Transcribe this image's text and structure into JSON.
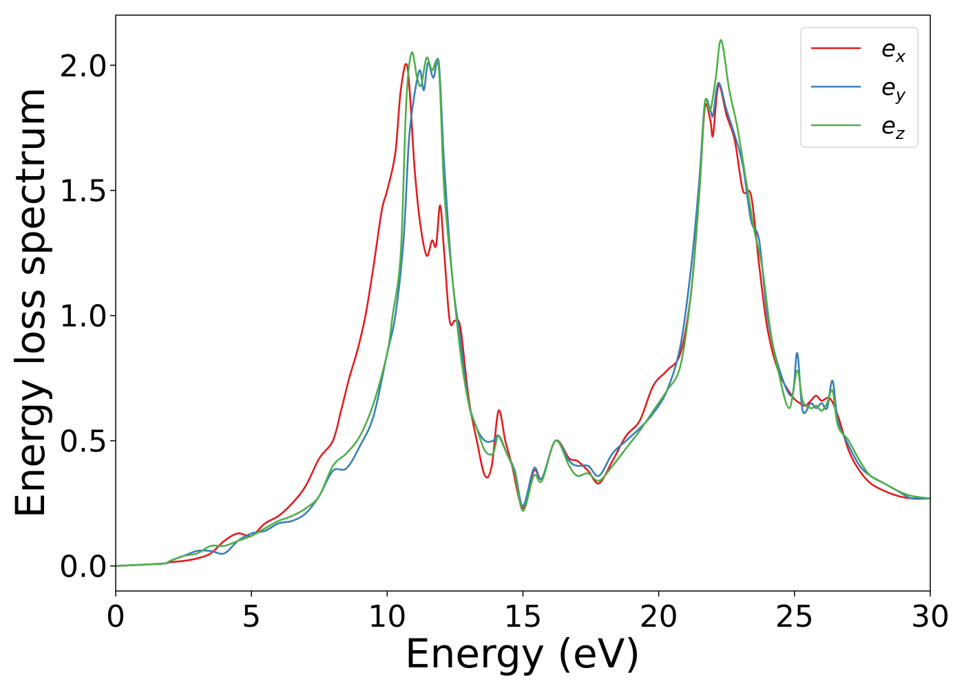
{
  "chart_data": {
    "type": "line",
    "title": "",
    "xlabel": "Energy (eV)",
    "ylabel": "Energy loss spectrum",
    "xlim": [
      0,
      30
    ],
    "ylim": [
      -0.1,
      2.2
    ],
    "xticks": [
      0,
      5,
      10,
      15,
      20,
      25,
      30
    ],
    "yticks": [
      0.0,
      0.5,
      1.0,
      1.5,
      2.0
    ],
    "xtick_labels": [
      "0",
      "5",
      "10",
      "15",
      "20",
      "25",
      "30"
    ],
    "ytick_labels": [
      "0.0",
      "0.5",
      "1.0",
      "1.5",
      "2.0"
    ],
    "grid": false,
    "legend_position": "top-right",
    "series": [
      {
        "name": "e_x",
        "label_base": "e",
        "label_sub": "x",
        "color": "#e41a1c",
        "x": [
          0,
          1,
          1.8,
          2,
          2.5,
          3,
          3.5,
          4,
          4.5,
          5,
          5.5,
          6,
          6.5,
          7,
          7.5,
          8,
          8.3,
          8.6,
          8.9,
          9.2,
          9.5,
          9.8,
          10.0,
          10.3,
          10.5,
          10.75,
          11.0,
          11.2,
          11.45,
          11.65,
          11.8,
          11.95,
          12.1,
          12.3,
          12.5,
          12.7,
          13.0,
          13.3,
          13.6,
          13.85,
          14.1,
          14.35,
          14.6,
          15.0,
          15.4,
          15.7,
          16.2,
          16.7,
          17.0,
          17.4,
          17.8,
          18.3,
          18.8,
          19.3,
          19.8,
          20.3,
          20.8,
          21.2,
          21.5,
          21.7,
          21.9,
          22.0,
          22.2,
          22.5,
          22.8,
          23.1,
          23.4,
          23.7,
          24.0,
          24.4,
          24.9,
          25.2,
          25.4,
          25.6,
          25.8,
          26.0,
          26.3,
          26.6,
          27.0,
          27.4,
          27.8,
          28.3,
          28.8,
          29.3,
          30
        ],
        "y": [
          0.0,
          0.005,
          0.01,
          0.015,
          0.02,
          0.03,
          0.05,
          0.1,
          0.13,
          0.12,
          0.17,
          0.2,
          0.25,
          0.32,
          0.43,
          0.5,
          0.62,
          0.75,
          0.86,
          1.0,
          1.2,
          1.42,
          1.5,
          1.65,
          1.9,
          1.99,
          1.6,
          1.38,
          1.24,
          1.3,
          1.28,
          1.44,
          1.25,
          0.98,
          0.98,
          0.95,
          0.67,
          0.5,
          0.36,
          0.4,
          0.62,
          0.5,
          0.4,
          0.23,
          0.38,
          0.35,
          0.5,
          0.43,
          0.42,
          0.38,
          0.33,
          0.42,
          0.52,
          0.58,
          0.72,
          0.78,
          0.85,
          1.1,
          1.5,
          1.83,
          1.78,
          1.72,
          1.92,
          1.8,
          1.7,
          1.5,
          1.48,
          1.2,
          0.95,
          0.78,
          0.68,
          0.65,
          0.64,
          0.66,
          0.68,
          0.66,
          0.67,
          0.6,
          0.46,
          0.38,
          0.33,
          0.3,
          0.28,
          0.27,
          0.27
        ]
      },
      {
        "name": "e_y",
        "label_base": "e",
        "label_sub": "y",
        "color": "#377eb8",
        "x": [
          0,
          1,
          1.8,
          2,
          2.5,
          3,
          3.5,
          4,
          4.5,
          5,
          5.5,
          6,
          6.5,
          7,
          7.5,
          8,
          8.5,
          9,
          9.5,
          10,
          10.3,
          10.6,
          10.8,
          11.0,
          11.2,
          11.35,
          11.5,
          11.7,
          11.9,
          12.1,
          12.4,
          12.7,
          13.0,
          13.3,
          13.6,
          13.9,
          14.1,
          14.4,
          14.7,
          15.0,
          15.4,
          15.7,
          16.2,
          16.7,
          17.0,
          17.4,
          17.8,
          18.3,
          18.8,
          19.3,
          19.8,
          20.3,
          20.8,
          21.2,
          21.5,
          21.7,
          21.9,
          22.0,
          22.2,
          22.5,
          22.8,
          23.1,
          23.4,
          23.7,
          24.0,
          24.4,
          24.9,
          25.1,
          25.3,
          25.6,
          25.8,
          26.0,
          26.2,
          26.4,
          26.6,
          27.0,
          27.4,
          27.8,
          28.3,
          28.8,
          29.3,
          30
        ],
        "y": [
          0.0,
          0.005,
          0.01,
          0.02,
          0.04,
          0.06,
          0.06,
          0.05,
          0.1,
          0.13,
          0.14,
          0.17,
          0.18,
          0.21,
          0.28,
          0.38,
          0.39,
          0.48,
          0.6,
          0.85,
          1.0,
          1.3,
          1.7,
          1.88,
          1.98,
          1.9,
          2.01,
          1.95,
          2.01,
          1.6,
          1.15,
          0.9,
          0.65,
          0.55,
          0.5,
          0.5,
          0.52,
          0.45,
          0.38,
          0.24,
          0.39,
          0.35,
          0.5,
          0.42,
          0.4,
          0.4,
          0.36,
          0.45,
          0.5,
          0.55,
          0.61,
          0.7,
          0.88,
          1.2,
          1.55,
          1.85,
          1.82,
          1.8,
          1.93,
          1.82,
          1.72,
          1.6,
          1.38,
          1.3,
          1.0,
          0.8,
          0.68,
          0.85,
          0.62,
          0.65,
          0.63,
          0.65,
          0.63,
          0.74,
          0.58,
          0.48,
          0.4,
          0.36,
          0.33,
          0.3,
          0.27,
          0.27
        ]
      },
      {
        "name": "e_z",
        "label_base": "e",
        "label_sub": "z",
        "color": "#4daf4a",
        "x": [
          0,
          1,
          1.8,
          2,
          2.5,
          3,
          3.5,
          4,
          4.5,
          5,
          5.5,
          6,
          6.5,
          7,
          7.5,
          8,
          8.5,
          9,
          9.5,
          10,
          10.2,
          10.5,
          10.7,
          10.9,
          11.1,
          11.25,
          11.45,
          11.65,
          11.9,
          12.1,
          12.4,
          12.7,
          13.0,
          13.3,
          13.6,
          13.9,
          14.1,
          14.4,
          14.7,
          15.0,
          15.4,
          15.7,
          16.2,
          16.7,
          17.0,
          17.4,
          17.8,
          18.3,
          18.8,
          19.3,
          19.8,
          20.3,
          20.8,
          21.2,
          21.5,
          21.7,
          21.9,
          22.1,
          22.3,
          22.6,
          22.9,
          23.2,
          23.5,
          23.8,
          24.1,
          24.4,
          24.8,
          25.1,
          25.3,
          25.6,
          25.8,
          26.0,
          26.2,
          26.4,
          26.6,
          27.0,
          27.4,
          27.8,
          28.3,
          28.8,
          29.3,
          30
        ],
        "y": [
          0.0,
          0.005,
          0.01,
          0.02,
          0.04,
          0.05,
          0.08,
          0.08,
          0.1,
          0.12,
          0.15,
          0.18,
          0.2,
          0.23,
          0.28,
          0.4,
          0.45,
          0.52,
          0.65,
          0.85,
          1.0,
          1.25,
          1.85,
          2.05,
          1.95,
          1.92,
          2.03,
          1.98,
          1.99,
          1.5,
          1.15,
          0.85,
          0.65,
          0.55,
          0.46,
          0.45,
          0.52,
          0.45,
          0.37,
          0.22,
          0.36,
          0.34,
          0.5,
          0.4,
          0.36,
          0.37,
          0.34,
          0.4,
          0.47,
          0.54,
          0.62,
          0.7,
          0.8,
          1.1,
          1.5,
          1.85,
          1.82,
          1.95,
          2.1,
          1.9,
          1.75,
          1.55,
          1.35,
          1.2,
          0.95,
          0.78,
          0.63,
          0.78,
          0.66,
          0.63,
          0.64,
          0.62,
          0.65,
          0.7,
          0.56,
          0.5,
          0.42,
          0.36,
          0.33,
          0.3,
          0.28,
          0.27
        ]
      }
    ]
  }
}
